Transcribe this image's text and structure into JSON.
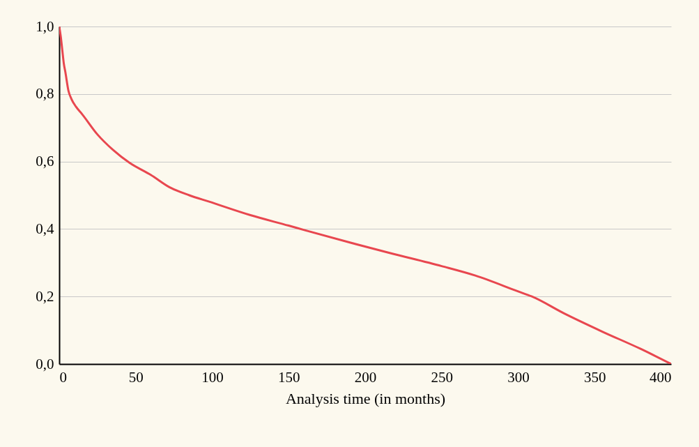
{
  "chart_data": {
    "type": "line",
    "xlabel": "Analysis time (in months)",
    "x": [
      0,
      1,
      2,
      3,
      4,
      6,
      8,
      11,
      15,
      25,
      35,
      46,
      60,
      72,
      85,
      98,
      125,
      150,
      161,
      190,
      216,
      250,
      272,
      300,
      309,
      330,
      355,
      380,
      400
    ],
    "series": [
      {
        "color": "#e8474f",
        "values": [
          1.0,
          0.97,
          0.93,
          0.89,
          0.865,
          0.81,
          0.785,
          0.762,
          0.74,
          0.68,
          0.635,
          0.596,
          0.56,
          0.524,
          0.5,
          0.481,
          0.441,
          0.41,
          0.396,
          0.36,
          0.329,
          0.29,
          0.262,
          0.215,
          0.2,
          0.15,
          0.096,
          0.045,
          0.0
        ]
      }
    ],
    "xlim": [
      0,
      400
    ],
    "xticks": [
      0,
      50,
      100,
      150,
      200,
      250,
      300,
      350,
      400
    ],
    "ylim": [
      0,
      1
    ],
    "yticks": [
      {
        "value": 0,
        "label": "0,0"
      },
      {
        "value": 0.2,
        "label": "0,2"
      },
      {
        "value": 0.4,
        "label": "0,4"
      },
      {
        "value": 0.6,
        "label": "0,6"
      },
      {
        "value": 0.8,
        "label": "0,8"
      },
      {
        "value": 1,
        "label": "1,0"
      }
    ],
    "grid": "y",
    "marker": "none",
    "line_style": "solid"
  }
}
